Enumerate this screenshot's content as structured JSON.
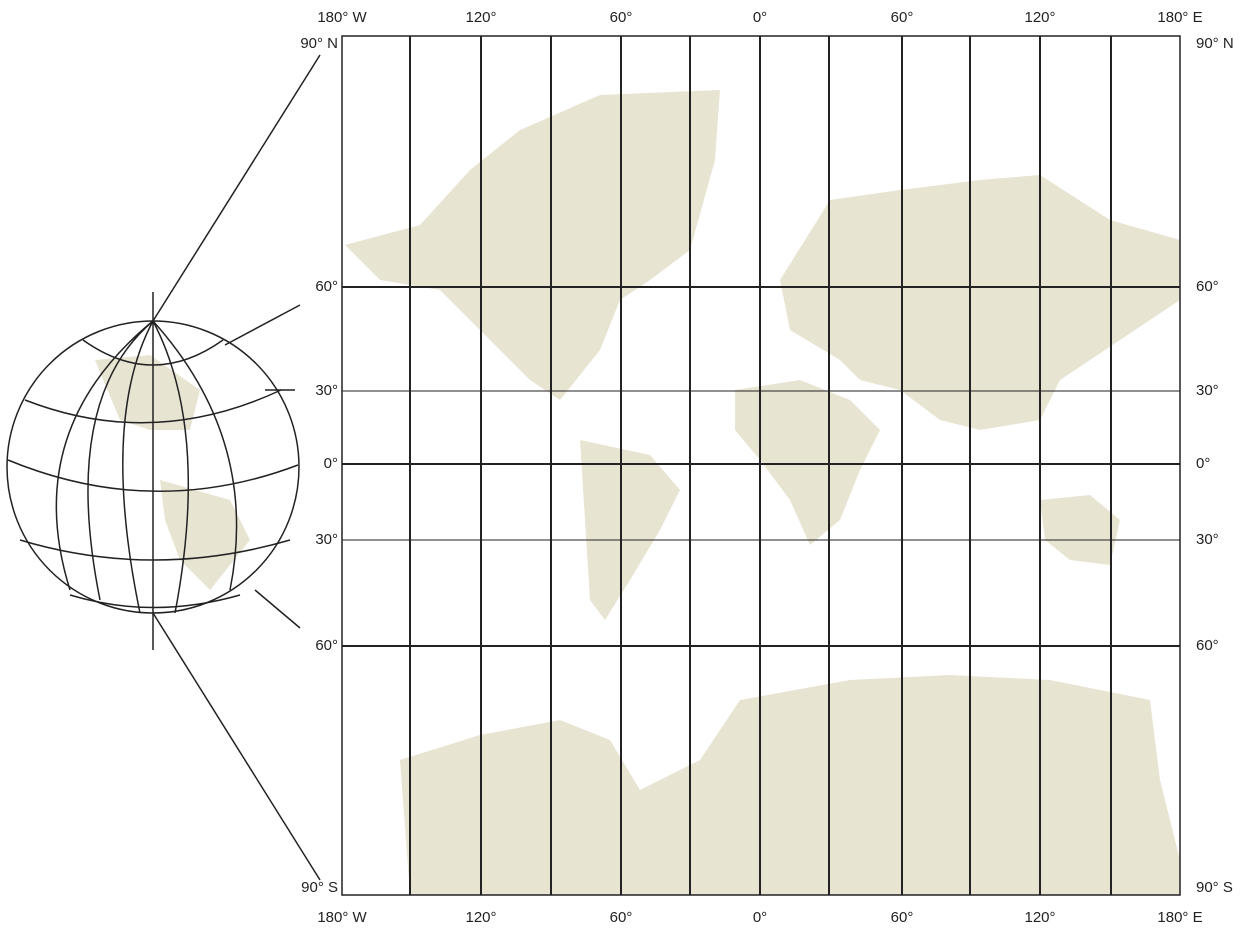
{
  "top_labels": [
    "180° W",
    "120°",
    "60°",
    "0°",
    "60°",
    "120°",
    "180° E"
  ],
  "bottom_labels": [
    "180° W",
    "120°",
    "60°",
    "0°",
    "60°",
    "120°",
    "180° E"
  ],
  "left_labels": [
    "90° N",
    "60°",
    "30°",
    "0°",
    "30°",
    "60°",
    "90° S"
  ],
  "right_labels": [
    "90° N",
    "60°",
    "30°",
    "0°",
    "30°",
    "60°",
    "90° S"
  ]
}
